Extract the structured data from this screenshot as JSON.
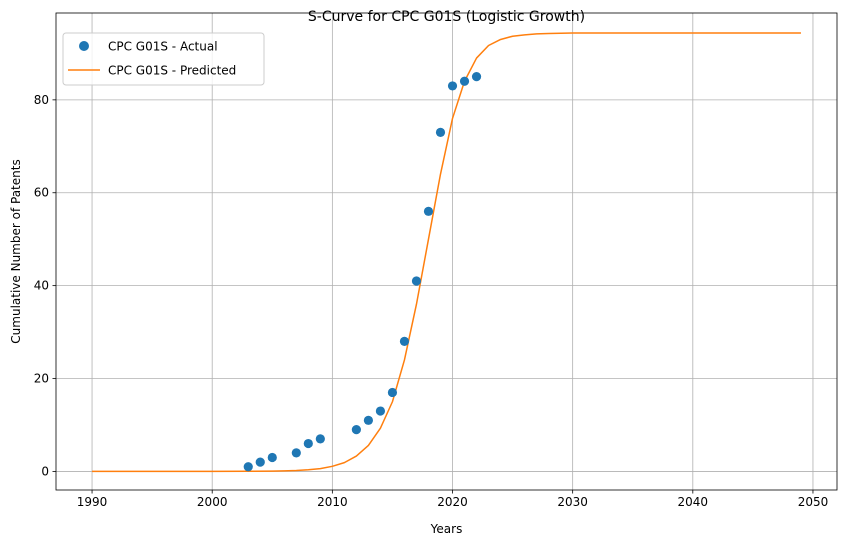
{
  "chart_data": {
    "type": "scatter",
    "title": "S-Curve for CPC G01S (Logistic Growth)",
    "xlabel": "Years",
    "ylabel": "Cumulative Number of Patents",
    "xlim": [
      1987,
      2052
    ],
    "ylim": [
      -4,
      98.7
    ],
    "x_ticks": [
      1990,
      2000,
      2010,
      2020,
      2030,
      2040,
      2050
    ],
    "y_ticks": [
      0,
      20,
      40,
      60,
      80
    ],
    "grid": true,
    "legend_placement": "top-left",
    "series": [
      {
        "name": "CPC G01S - Actual",
        "kind": "markers",
        "color": "#1f77b4",
        "points": [
          [
            2003,
            1
          ],
          [
            2004,
            2
          ],
          [
            2005,
            3
          ],
          [
            2007,
            4
          ],
          [
            2008,
            6
          ],
          [
            2009,
            7
          ],
          [
            2012,
            9
          ],
          [
            2013,
            11
          ],
          [
            2014,
            13
          ],
          [
            2015,
            17
          ],
          [
            2016,
            28
          ],
          [
            2017,
            41
          ],
          [
            2018,
            56
          ],
          [
            2019,
            73
          ],
          [
            2020,
            83
          ],
          [
            2021,
            84
          ],
          [
            2022,
            85
          ]
        ]
      },
      {
        "name": "CPC G01S - Predicted",
        "kind": "line",
        "color": "#ff7f0e",
        "points": [
          [
            1990,
            0
          ],
          [
            2000,
            0.01
          ],
          [
            2003,
            0.03
          ],
          [
            2005,
            0.07
          ],
          [
            2006,
            0.12
          ],
          [
            2007,
            0.2
          ],
          [
            2008,
            0.35
          ],
          [
            2009,
            0.6
          ],
          [
            2010,
            1.1
          ],
          [
            2011,
            1.9
          ],
          [
            2012,
            3.3
          ],
          [
            2013,
            5.6
          ],
          [
            2014,
            9.3
          ],
          [
            2015,
            15
          ],
          [
            2016,
            24
          ],
          [
            2017,
            36
          ],
          [
            2018,
            50
          ],
          [
            2019,
            64
          ],
          [
            2020,
            76
          ],
          [
            2021,
            84
          ],
          [
            2022,
            89
          ],
          [
            2023,
            91.7
          ],
          [
            2024,
            93
          ],
          [
            2025,
            93.7
          ],
          [
            2026,
            94
          ],
          [
            2027,
            94.2
          ],
          [
            2028,
            94.3
          ],
          [
            2030,
            94.4
          ],
          [
            2035,
            94.4
          ],
          [
            2040,
            94.4
          ],
          [
            2049,
            94.4
          ]
        ]
      }
    ]
  }
}
